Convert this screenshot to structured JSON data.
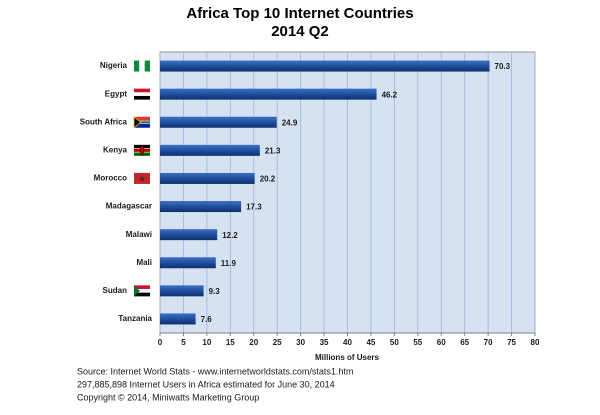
{
  "chart_data": {
    "type": "bar",
    "orientation": "horizontal",
    "title": "Africa Top 10 Internet Countries",
    "subtitle": "2014 Q2",
    "categories": [
      "Nigeria",
      "Egypt",
      "South Africa",
      "Kenya",
      "Morocco",
      "Madagascar",
      "Malawi",
      "Mali",
      "Sudan",
      "Tanzania"
    ],
    "values": [
      70.3,
      46.2,
      24.9,
      21.3,
      20.2,
      17.3,
      12.2,
      11.9,
      9.3,
      7.6
    ],
    "color": "#1f4f9e",
    "xlabel": "Millions of Users",
    "xlim": [
      0,
      80
    ],
    "xticks": [
      0,
      5,
      10,
      15,
      20,
      25,
      30,
      35,
      40,
      45,
      50,
      55,
      60,
      65,
      70,
      75,
      80
    ],
    "grid": true,
    "notes": [
      "Source: Internet World Stats - www.internetworldstats.com/stats1.htm",
      "297,885,898 Internet Users in Africa estimated for June 30, 2014",
      "Copyright © 2014, Miniwatts Marketing Group"
    ]
  }
}
